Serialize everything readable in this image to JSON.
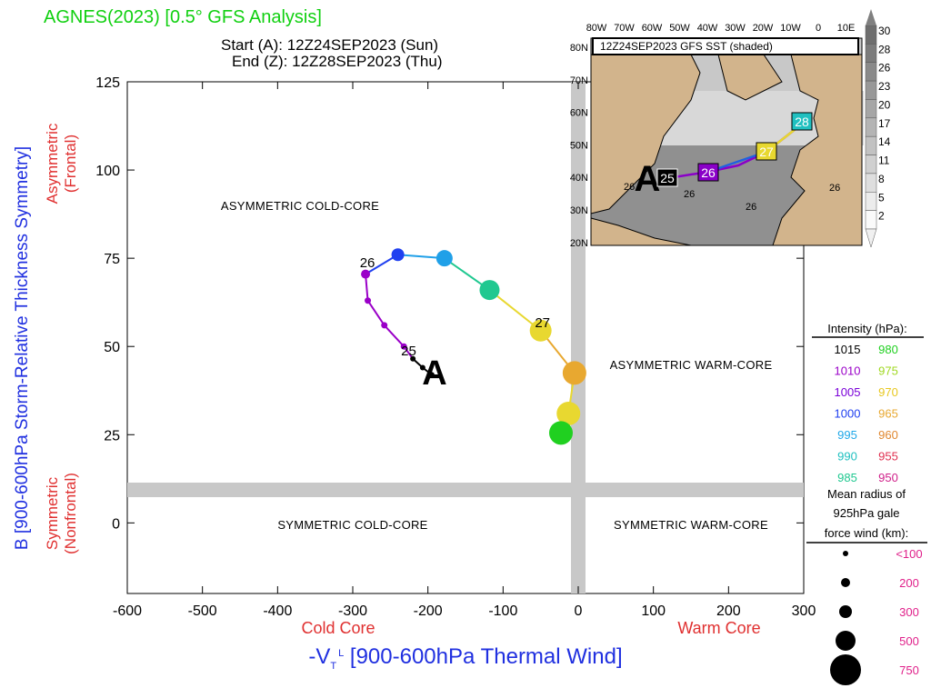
{
  "header": {
    "title": "AGNES(2023) [0.5° GFS Analysis]",
    "start": "Start (A): 12Z24SEP2023 (Sun)",
    "end": "End (Z): 12Z28SEP2023 (Thu)"
  },
  "colors": {
    "title": "#10d010",
    "axis_label_blue": "#2030e0",
    "axis_label_red": "#e03030",
    "quadrant_bar": "#c8c8c8",
    "land": "#d2b48c",
    "legend_pink": "#e0208a"
  },
  "chart_data": {
    "type": "scatter",
    "xlabel": "-V",
    "xlabel_sub": "T",
    "xlabel_sup": "L",
    "xlabel_rest": " [900-600hPa Thermal Wind]",
    "ylabel": "B [900-600hPa Storm-Relative Thickness Symmetry]",
    "xlim": [
      -600,
      300
    ],
    "ylim": [
      -20,
      125
    ],
    "x_ticks": [
      -600,
      -500,
      -400,
      -300,
      -200,
      -100,
      0,
      100,
      200,
      300
    ],
    "y_ticks": [
      0,
      25,
      50,
      75,
      100,
      125
    ],
    "x_left_label": "Cold Core",
    "x_right_label": "Warm Core",
    "y_top_label_1": "Asymmetric",
    "y_top_label_2": "(Frontal)",
    "y_bottom_label_1": "Symmetric",
    "y_bottom_label_2": "(Nonfrontal)",
    "quadrants": {
      "top_left": "ASYMMETRIC COLD-CORE",
      "top_right": "ASYMMETRIC WARM-CORE",
      "bottom_left": "SYMMETRIC COLD-CORE",
      "bottom_right": "SYMMETRIC WARM-CORE"
    },
    "start_marker": "A",
    "points": [
      {
        "x": -195,
        "y": 42,
        "color": "#000000",
        "r": 3
      },
      {
        "x": -207,
        "y": 44,
        "color": "#000000",
        "r": 3
      },
      {
        "x": -220,
        "y": 46.5,
        "color": "#000000",
        "r": 3
      },
      {
        "x": -232,
        "y": 50,
        "color": "#9a00c8",
        "r": 3.5
      },
      {
        "x": -258,
        "y": 56,
        "color": "#9a00c8",
        "r": 3.5
      },
      {
        "x": -280,
        "y": 63,
        "color": "#9a00c8",
        "r": 3.5
      },
      {
        "x": -283,
        "y": 70.5,
        "color": "#9a00c8",
        "r": 5
      },
      {
        "x": -240,
        "y": 76,
        "color": "#2040f0",
        "r": 7
      },
      {
        "x": -178,
        "y": 75,
        "color": "#20a0e8",
        "r": 9
      },
      {
        "x": -118,
        "y": 66,
        "color": "#20c890",
        "r": 11
      },
      {
        "x": -50,
        "y": 54.5,
        "color": "#e8d830",
        "r": 12
      },
      {
        "x": -5,
        "y": 42.5,
        "color": "#e8a830",
        "r": 13
      },
      {
        "x": -13,
        "y": 31,
        "color": "#e8d830",
        "r": 13
      },
      {
        "x": -23,
        "y": 25.5,
        "color": "#20d020",
        "r": 13
      }
    ],
    "day_labels": [
      {
        "text": "25",
        "x": -228,
        "y": 47
      },
      {
        "text": "26",
        "x": -283,
        "y": 72
      },
      {
        "text": "27",
        "x": -50,
        "y": 55
      }
    ]
  },
  "inset_map": {
    "title": "12Z24SEP2023 GFS SST (shaded)",
    "lon_labels": [
      "80W",
      "70W",
      "60W",
      "50W",
      "40W",
      "30W",
      "20W",
      "10W",
      "0",
      "10E"
    ],
    "lat_labels": [
      "80N",
      "70N",
      "60N",
      "50N",
      "40N",
      "30N",
      "20N"
    ],
    "sst_contour_labels": [
      "26",
      "26",
      "26",
      "26"
    ],
    "day_boxes": [
      {
        "text": "A",
        "color": "#000000"
      },
      {
        "text": "25",
        "color": "#000000"
      },
      {
        "text": "26",
        "color": "#8a00c8"
      },
      {
        "text": "27",
        "color": "#e8d830"
      },
      {
        "text": "28",
        "color": "#20c0c0"
      }
    ],
    "colorbar": [
      "30",
      "28",
      "26",
      "23",
      "20",
      "17",
      "14",
      "11",
      "8",
      "5",
      "2"
    ]
  },
  "legend": {
    "intensity_title": "Intensity (hPa):",
    "intensity": [
      {
        "value": "1015",
        "color": "#000000"
      },
      {
        "value": "980",
        "color": "#20d020"
      },
      {
        "value": "1010",
        "color": "#9a00c8"
      },
      {
        "value": "975",
        "color": "#a0d820"
      },
      {
        "value": "1005",
        "color": "#7a00d8"
      },
      {
        "value": "970",
        "color": "#e8c820"
      },
      {
        "value": "1000",
        "color": "#2040f0"
      },
      {
        "value": "965",
        "color": "#e8a830"
      },
      {
        "value": "995",
        "color": "#20a8e8"
      },
      {
        "value": "960",
        "color": "#e08830"
      },
      {
        "value": "990",
        "color": "#20c0c0"
      },
      {
        "value": "955",
        "color": "#e03050"
      },
      {
        "value": "985",
        "color": "#20c890"
      },
      {
        "value": "950",
        "color": "#d0208a"
      }
    ],
    "radius_title_1": "Mean radius of",
    "radius_title_2": "925hPa gale",
    "radius_title_3": "force wind (km):",
    "radius": [
      {
        "label": "<100",
        "r": 3
      },
      {
        "label": "200",
        "r": 5
      },
      {
        "label": "300",
        "r": 7
      },
      {
        "label": "500",
        "r": 11
      },
      {
        "label": "750",
        "r": 17
      }
    ]
  }
}
